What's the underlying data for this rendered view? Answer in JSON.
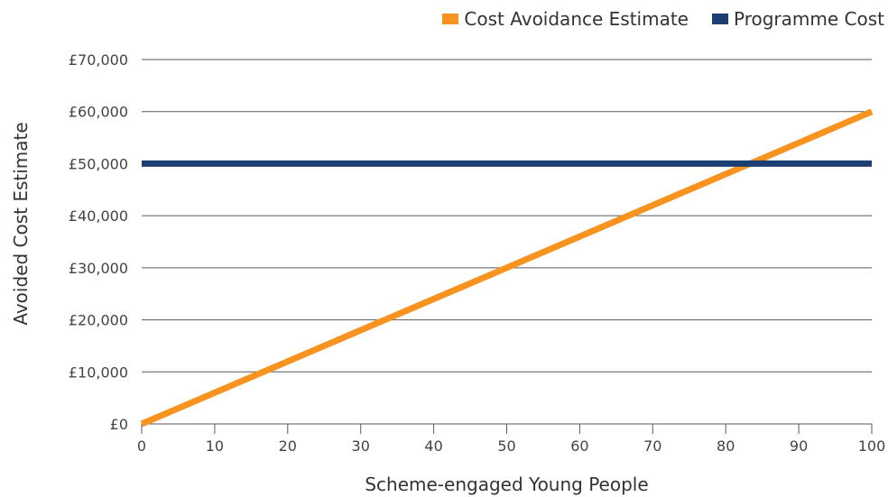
{
  "chart_data": {
    "type": "line",
    "xlabel": "Scheme-engaged Young People",
    "ylabel": "Avoided Cost Estimate",
    "xlim": [
      0,
      100
    ],
    "ylim": [
      0,
      70000
    ],
    "x_ticks": [
      0,
      10,
      20,
      30,
      40,
      50,
      60,
      70,
      80,
      90,
      100
    ],
    "y_ticks": [
      0,
      10000,
      20000,
      30000,
      40000,
      50000,
      60000,
      70000
    ],
    "y_tick_labels": [
      "£0",
      "£10,000",
      "£20,000",
      "£30,000",
      "£40,000",
      "£50,000",
      "£60,000",
      "£70,000"
    ],
    "grid": "horizontal",
    "legend_position": "top-right",
    "series": [
      {
        "name": "Cost Avoidance Estimate",
        "color": "#F7931E",
        "points": [
          [
            0,
            0
          ],
          [
            100,
            60000
          ]
        ]
      },
      {
        "name": "Programme Cost",
        "color": "#1B3F73",
        "points": [
          [
            0,
            50000
          ],
          [
            100,
            50000
          ]
        ]
      }
    ]
  }
}
